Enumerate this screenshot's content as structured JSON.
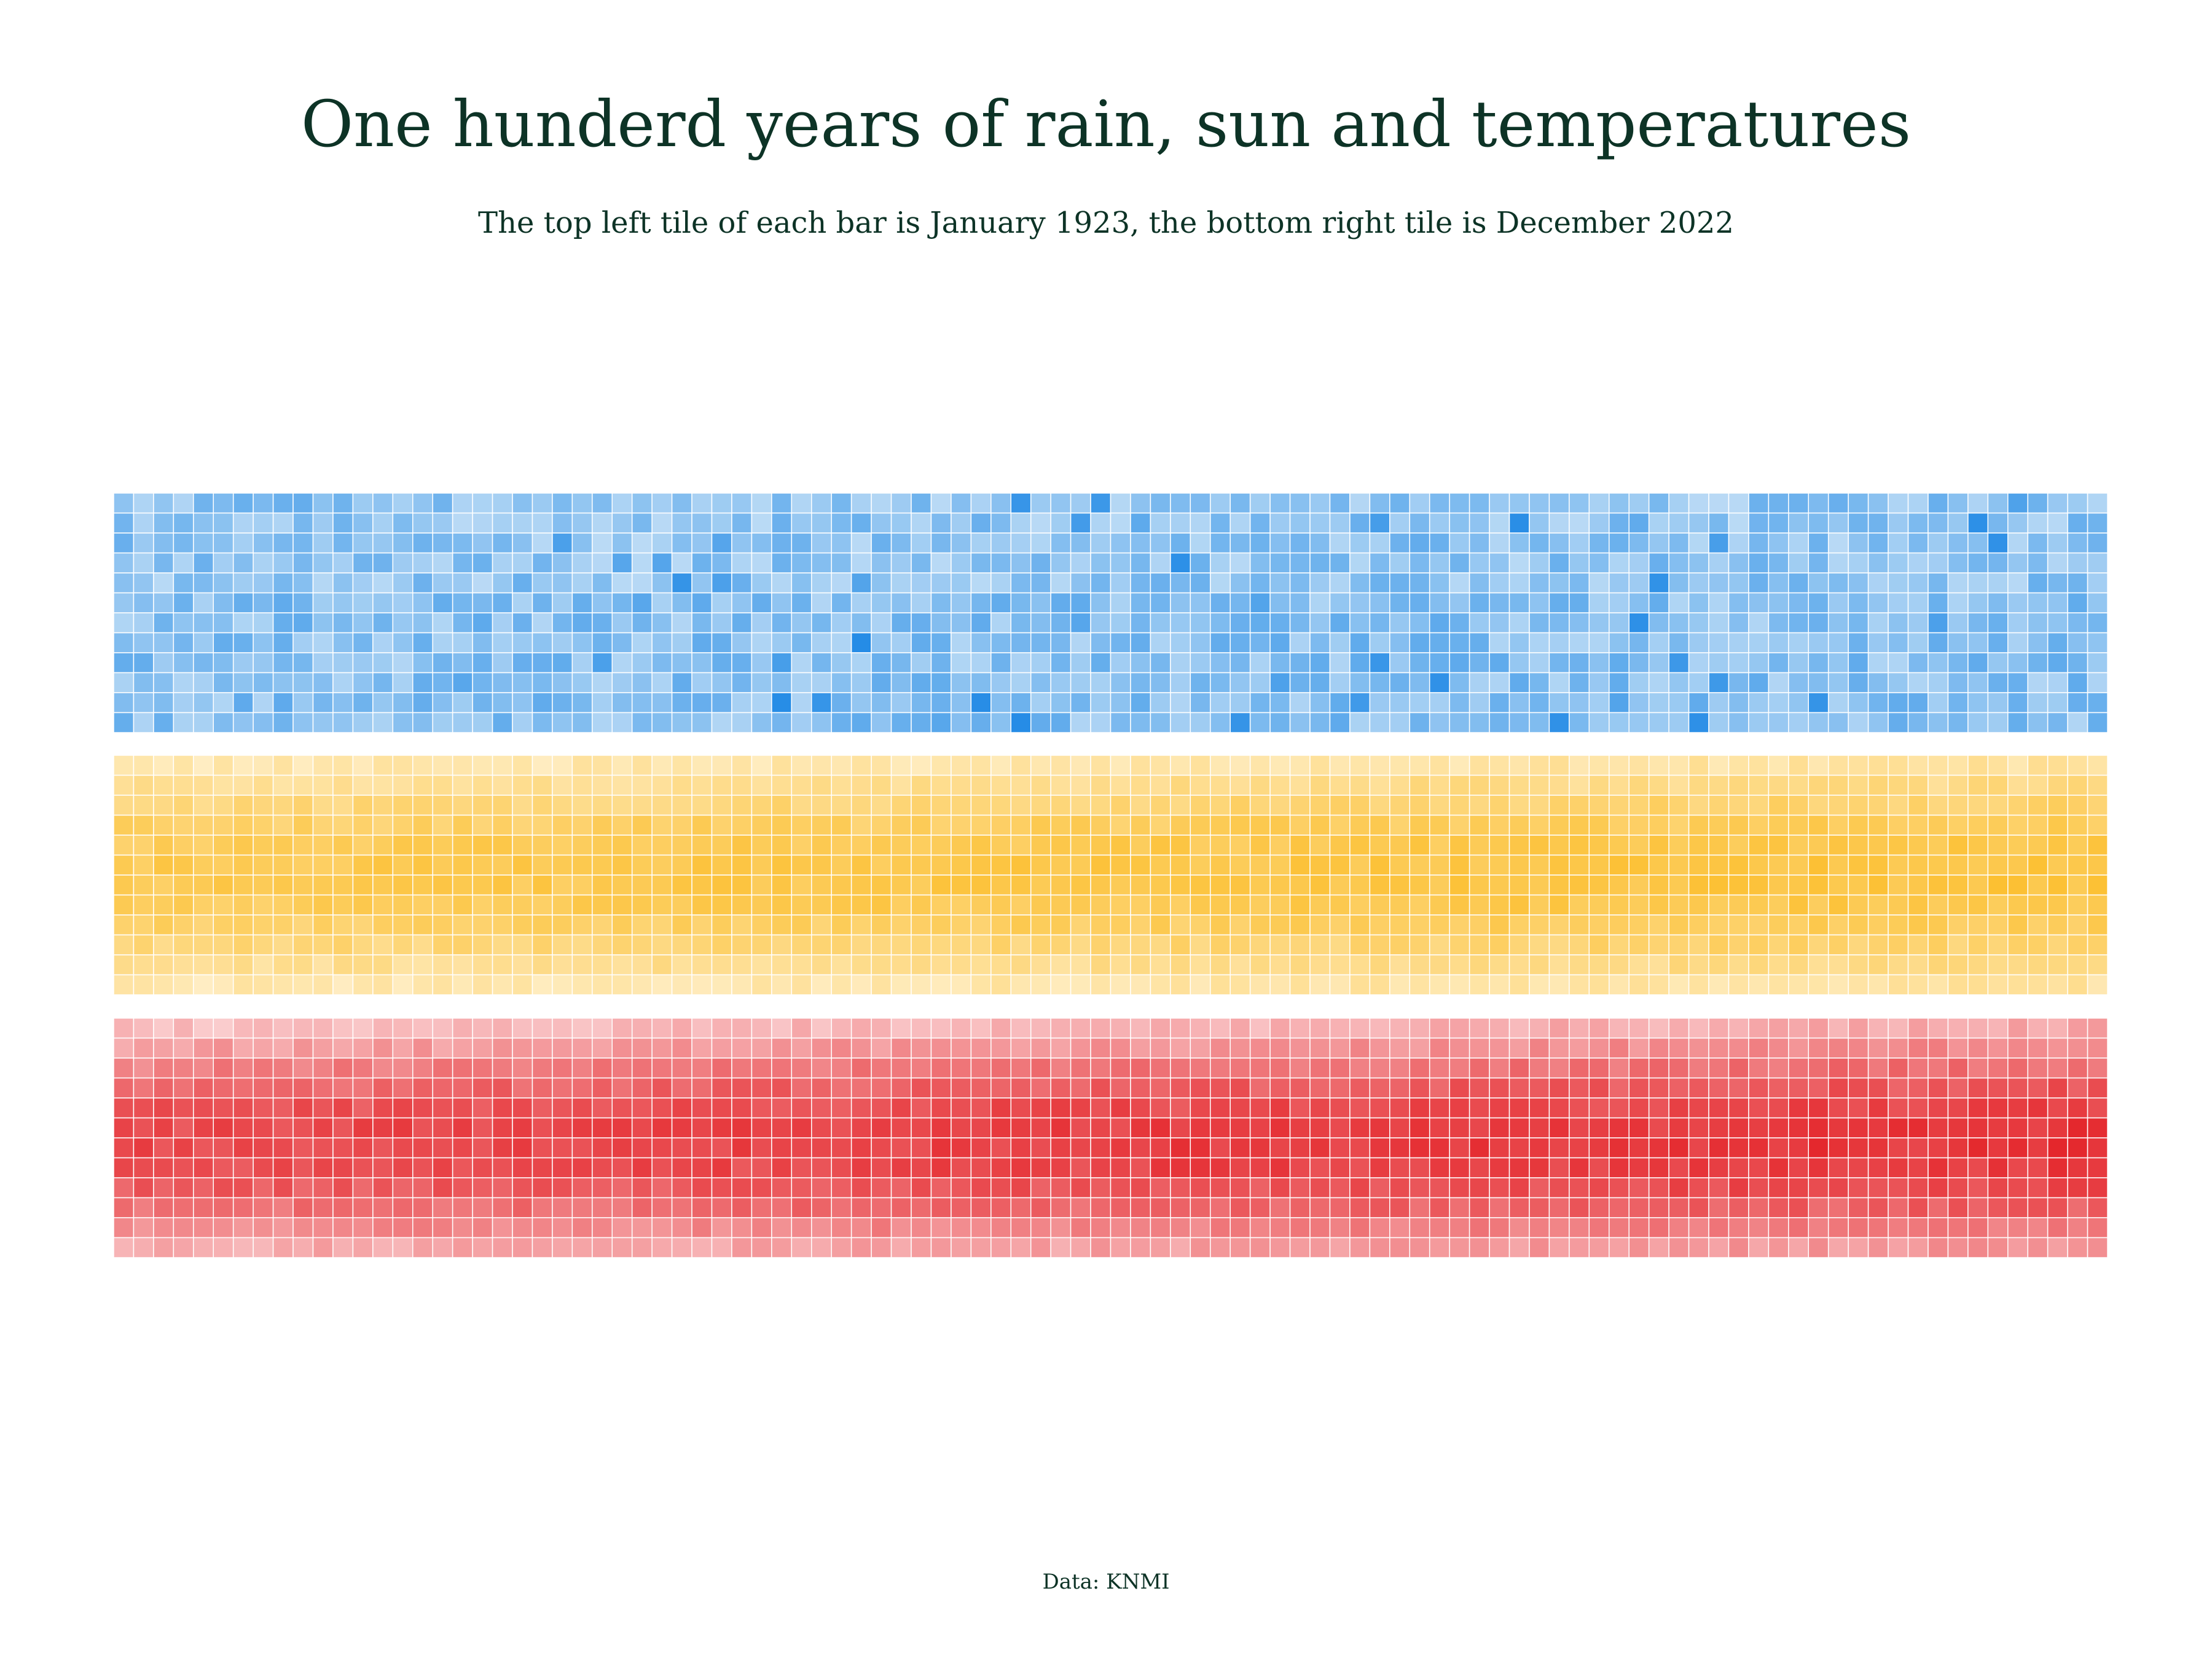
{
  "title": "One hunderd years of rain, sun and temperatures",
  "subtitle": "The top left tile of each bar is January 1923, the bottom right tile is December 2022",
  "source": "Data: KNMI",
  "chart_data": [
    {
      "type": "heatmap",
      "variable": "rain",
      "start": "January 1923",
      "end": "December 2022",
      "tiles": 1200,
      "color": "#1e88e5",
      "light_color": "#d6e9f8"
    },
    {
      "type": "heatmap",
      "variable": "sun",
      "start": "January 1923",
      "end": "December 2022",
      "tiles": 1200,
      "color": "#fbb81a",
      "light_color": "#fff1cf"
    },
    {
      "type": "heatmap",
      "variable": "temperatures",
      "start": "January 1923",
      "end": "December 2022",
      "tiles": 1200,
      "color": "#e4262b",
      "light_color": "#fcd9da"
    }
  ]
}
